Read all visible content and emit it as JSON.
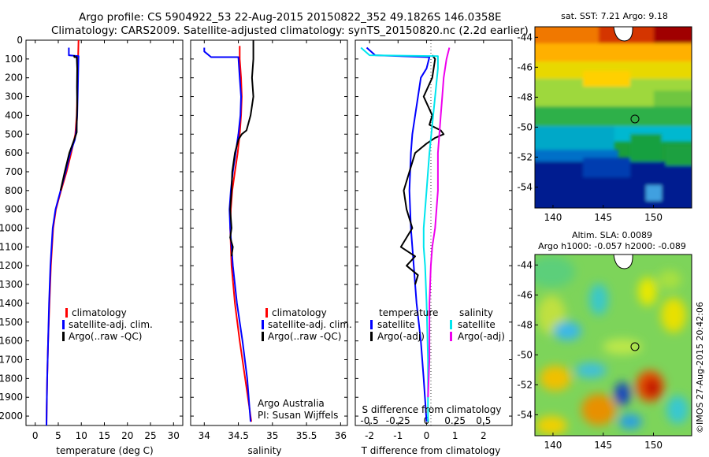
{
  "header": {
    "line1": "Argo profile: CS 5904922_53 22-Aug-2015 20150822_352 49.1826S 146.0358E",
    "line2": "Climatology: CARS2009. Satellite-adjusted climatology: synTS_20150820.nc (2.2d earlier)"
  },
  "footer_credit": "©IMOS 27-Aug-2015 20:42:06",
  "chart_data": [
    {
      "type": "line",
      "xlabel": "temperature (deg C)",
      "ylabel": "",
      "xlim": [
        -2,
        32
      ],
      "ylim": [
        2050,
        0
      ],
      "xticks": [
        "0",
        "5",
        "10",
        "15",
        "20",
        "25",
        "30"
      ],
      "yticks": [
        "0",
        "100",
        "200",
        "300",
        "400",
        "500",
        "600",
        "700",
        "800",
        "900",
        "1000",
        "1100",
        "1200",
        "1300",
        "1400",
        "1500",
        "1600",
        "1700",
        "1800",
        "1900",
        "2000"
      ],
      "legend": [
        "climatology",
        "satellite-adj. clim.",
        "Argo(..raw -QC)"
      ],
      "series": [
        {
          "name": "climatology",
          "color": "#ff0000",
          "x": [
            9.4,
            9.3,
            9.2,
            9.1,
            9.0,
            8.7,
            7.8,
            6.8,
            5.6,
            4.5,
            3.9,
            3.4,
            3.1,
            2.8,
            2.6,
            2.5,
            2.45
          ],
          "y": [
            0,
            100,
            200,
            300,
            400,
            500,
            600,
            700,
            800,
            900,
            1000,
            1200,
            1400,
            1600,
            1800,
            1950,
            2050
          ]
        },
        {
          "name": "satellite-adj. clim.",
          "color": "#0000ff",
          "x": [
            7.3,
            7.3,
            9.4,
            9.3,
            9.2,
            9.1,
            8.9,
            8.6,
            7.6,
            6.6,
            5.5,
            4.4,
            3.8,
            3.3,
            3.0,
            2.8,
            2.6,
            2.5,
            2.45
          ],
          "y": [
            40,
            80,
            85,
            200,
            300,
            400,
            480,
            530,
            600,
            700,
            800,
            900,
            1000,
            1200,
            1400,
            1600,
            1800,
            1950,
            2050
          ]
        },
        {
          "name": "Argo(..raw -QC)",
          "color": "#000000",
          "x": [
            8.4,
            8.5,
            9.0,
            9.1,
            9.05,
            9.1,
            9.0,
            9.0,
            8.6,
            7.4,
            6.4,
            5.5
          ],
          "y": [
            80,
            90,
            90,
            150,
            250,
            350,
            450,
            490,
            520,
            600,
            700,
            800
          ]
        }
      ]
    },
    {
      "type": "line",
      "xlabel": "salinity",
      "ylabel": "",
      "xlim": [
        33.8,
        36.1
      ],
      "ylim": [
        2050,
        0
      ],
      "xticks": [
        "34",
        "34.5",
        "35",
        "35.5",
        "36"
      ],
      "legend": [
        "climatology",
        "satellite-adj. clim.",
        "Argo(..raw -QC)"
      ],
      "annotation": [
        "Argo Australia",
        "PI: Susan Wijffels"
      ],
      "series": [
        {
          "name": "climatology",
          "color": "#ff0000",
          "x": [
            34.52,
            34.52,
            34.54,
            34.55,
            34.54,
            34.52,
            34.49,
            34.45,
            34.41,
            34.39,
            34.38,
            34.4,
            34.45,
            34.52,
            34.6,
            34.66,
            34.69
          ],
          "y": [
            30,
            100,
            200,
            300,
            400,
            500,
            600,
            700,
            800,
            900,
            1000,
            1200,
            1400,
            1600,
            1800,
            1950,
            2030
          ]
        },
        {
          "name": "satellite-adj. clim.",
          "color": "#0000ff",
          "x": [
            34.0,
            34.0,
            34.1,
            34.5,
            34.52,
            34.54,
            34.53,
            34.5,
            34.46,
            34.42,
            34.39,
            34.37,
            34.38,
            34.42,
            34.48,
            34.56,
            34.63,
            34.68
          ],
          "y": [
            40,
            60,
            90,
            90,
            200,
            300,
            400,
            500,
            600,
            700,
            800,
            900,
            1000,
            1200,
            1400,
            1600,
            1800,
            2030
          ]
        },
        {
          "name": "Argo(..raw -QC)",
          "color": "#000000",
          "x": [
            34.72,
            34.72,
            34.7,
            34.72,
            34.68,
            34.62,
            34.55,
            34.5,
            34.45,
            34.41,
            34.4,
            34.38,
            34.4,
            34.38,
            34.42,
            34.4
          ],
          "y": [
            0,
            100,
            200,
            300,
            400,
            480,
            500,
            530,
            600,
            700,
            800,
            900,
            1000,
            1050,
            1100,
            1150
          ]
        }
      ]
    },
    {
      "type": "line",
      "xlabel": "T difference from climatology",
      "title_bottom": "S difference from climatology",
      "xlim": [
        -2.5,
        3.0
      ],
      "ylim": [
        2050,
        0
      ],
      "xticks_T": [
        "-2",
        "-1",
        "0",
        "1",
        "2"
      ],
      "xticks_S": [
        "-0.5",
        "-0.25",
        "0",
        "0.25",
        "0.5"
      ],
      "legend": {
        "temperature": "temperature",
        "salinity": "salinity",
        "t_sat": "satellite",
        "t_argo": "Argo(-adj)",
        "s_sat": "satellite",
        "s_argo": "Argo(-adj)"
      },
      "series": [
        {
          "name": "T satellite",
          "color": "#0000ff",
          "x": [
            -2.1,
            -1.8,
            0.1,
            0.0,
            -0.2,
            -0.3,
            -0.4,
            -0.5,
            -0.55,
            -0.6,
            -0.55,
            -0.45,
            -0.35,
            -0.2,
            -0.1,
            0.0
          ],
          "y": [
            40,
            80,
            90,
            150,
            200,
            300,
            400,
            500,
            600,
            800,
            1000,
            1200,
            1400,
            1600,
            1800,
            2030
          ]
        },
        {
          "name": "T Argo(-adj)",
          "color": "#000000",
          "x": [
            0.2,
            0.3,
            0.2,
            -0.1,
            0.2,
            0.1,
            0.5,
            0.6,
            0.3,
            0.0,
            -0.4,
            -0.6,
            -0.8,
            -0.7,
            -0.5,
            -0.9,
            -0.4,
            -0.7,
            -0.3,
            -0.4
          ],
          "y": [
            80,
            100,
            200,
            300,
            400,
            450,
            480,
            500,
            520,
            550,
            600,
            700,
            800,
            900,
            1000,
            1100,
            1150,
            1200,
            1250,
            1300
          ]
        },
        {
          "name": "S satellite",
          "color": "#00e5ee",
          "x": [
            -2.3,
            -2.0,
            0.4,
            0.4,
            0.3,
            0.2,
            0.1,
            0.0,
            -0.1,
            -0.1,
            -0.05,
            0.0,
            0.05,
            0.05
          ],
          "y": [
            40,
            80,
            85,
            150,
            300,
            450,
            600,
            800,
            1000,
            1100,
            1200,
            1400,
            1700,
            2030
          ]
        },
        {
          "name": "S Argo(-adj)",
          "color": "#ee00ee",
          "x": [
            0.8,
            0.7,
            0.6,
            0.55,
            0.5,
            0.45,
            0.4,
            0.4,
            0.3,
            0.2,
            0.15,
            0.1,
            0.1,
            0.05
          ],
          "y": [
            40,
            100,
            200,
            300,
            400,
            500,
            600,
            800,
            1000,
            1100,
            1200,
            1400,
            1700,
            1900
          ]
        }
      ]
    },
    {
      "type": "heatmap",
      "title": "sat. SST: 7.21  Argo: 9.18",
      "xticks": [
        "140",
        "145",
        "150"
      ],
      "yticks": [
        "-44",
        "-46",
        "-48",
        "-50",
        "-52",
        "-54"
      ]
    },
    {
      "type": "heatmap",
      "title": "Altim. SLA: 0.0089",
      "subtitle": "Argo h1000: -0.057 h2000: -0.089",
      "xticks": [
        "140",
        "145",
        "150"
      ],
      "yticks": [
        "-44",
        "-46",
        "-48",
        "-50",
        "-52",
        "-54"
      ]
    }
  ]
}
